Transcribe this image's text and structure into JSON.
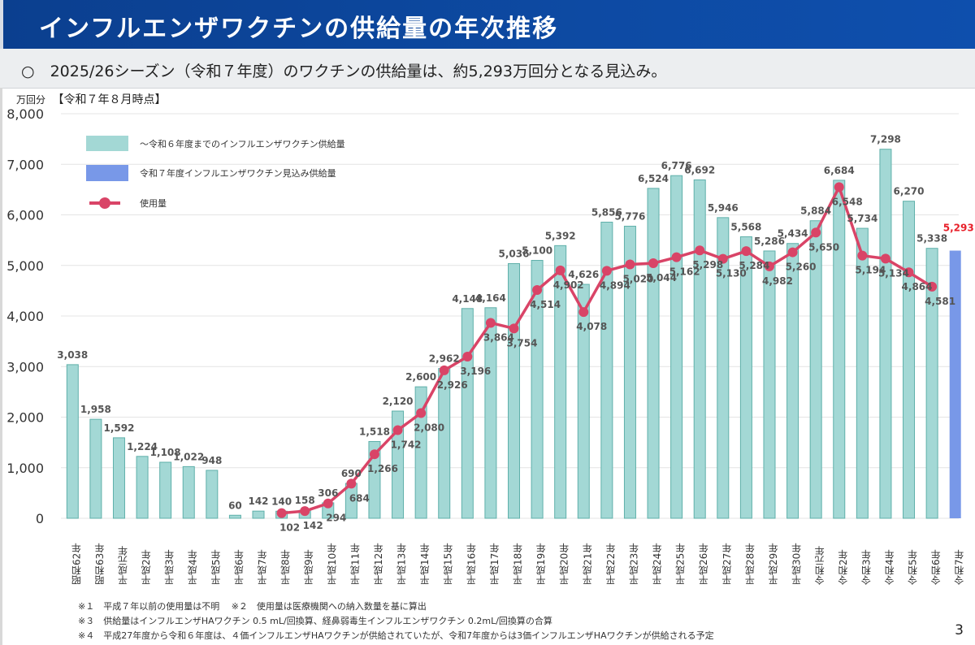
{
  "header": {
    "title": "インフルエンザワクチンの供給量の年次推移",
    "summary": "○　2025/26シーズン（令和７年度）のワクチンの供給量は、約5,293万回分となる見込み。"
  },
  "chart_meta": {
    "unit": "万回分",
    "as_of": "【令和７年８月時点】"
  },
  "chart_data": {
    "type": "bar",
    "title": "インフルエンザワクチンの供給量の年次推移",
    "xlabel": "",
    "ylabel": "万回分",
    "ylim": [
      0,
      8000
    ],
    "yticks": [
      0,
      1000,
      2000,
      3000,
      4000,
      5000,
      6000,
      7000,
      8000
    ],
    "ytick_labels": [
      "0",
      "1,000",
      "2,000",
      "3,000",
      "4,000",
      "5,000",
      "6,000",
      "7,000",
      "8,000"
    ],
    "grid": true,
    "legend_position": "top-left",
    "categories": [
      "昭和62年",
      "昭和63年",
      "平成元年",
      "平成2年",
      "平成3年",
      "平成4年",
      "平成5年",
      "平成6年",
      "平成7年",
      "平成8年",
      "平成9年",
      "平成10年",
      "平成11年",
      "平成12年",
      "平成13年",
      "平成14年",
      "平成15年",
      "平成16年",
      "平成17年",
      "平成18年",
      "平成19年",
      "平成20年",
      "平成21年",
      "平成22年",
      "平成23年",
      "平成24年",
      "平成25年",
      "平成26年",
      "平成27年",
      "平成28年",
      "平成29年",
      "平成30年",
      "令和元年",
      "令和2年",
      "令和3年",
      "令和4年",
      "令和5年",
      "令和6年",
      "令和7年"
    ],
    "series": [
      {
        "name": "～令和６年度までのインフルエンザワクチン供給量",
        "type": "bar",
        "color": "#a3d8d5",
        "values": [
          3038,
          1958,
          1592,
          1224,
          1108,
          1022,
          948,
          60,
          142,
          140,
          158,
          306,
          690,
          1518,
          2120,
          2600,
          2962,
          4148,
          4164,
          5036,
          5100,
          5392,
          4626,
          5856,
          5776,
          6524,
          6776,
          6692,
          5946,
          5568,
          5286,
          5434,
          5884,
          6684,
          5734,
          7298,
          6270,
          5338,
          null
        ],
        "labels": [
          "3,038",
          "1,958",
          "1,592",
          "1,224",
          "1,108",
          "1,022",
          "948",
          "60",
          "142",
          "140",
          "158",
          "306",
          "690",
          "1,518",
          "2,120",
          "2,600",
          "2,962",
          "4,148",
          "4,164",
          "5,036",
          "5,100",
          "5,392",
          "4,626",
          "5,856",
          "5,776",
          "6,524",
          "6,776",
          "6,692",
          "5,946",
          "5,568",
          "5,286",
          "5,434",
          "5,884",
          "6,684",
          "5,734",
          "7,298",
          "6,270",
          "5,338",
          ""
        ]
      },
      {
        "name": "令和７年度インフルエンザワクチン見込み供給量",
        "type": "bar",
        "color": "#7898e8",
        "values": [
          null,
          null,
          null,
          null,
          null,
          null,
          null,
          null,
          null,
          null,
          null,
          null,
          null,
          null,
          null,
          null,
          null,
          null,
          null,
          null,
          null,
          null,
          null,
          null,
          null,
          null,
          null,
          null,
          null,
          null,
          null,
          null,
          null,
          null,
          null,
          null,
          null,
          null,
          5293
        ],
        "labels": [
          "",
          "",
          "",
          "",
          "",
          "",
          "",
          "",
          "",
          "",
          "",
          "",
          "",
          "",
          "",
          "",
          "",
          "",
          "",
          "",
          "",
          "",
          "",
          "",
          "",
          "",
          "",
          "",
          "",
          "",
          "",
          "",
          "",
          "",
          "",
          "",
          "",
          "",
          "5,293"
        ],
        "label_color": "#e8202a"
      },
      {
        "name": "使用量",
        "type": "line",
        "color": "#d94467",
        "values": [
          null,
          null,
          null,
          null,
          null,
          null,
          null,
          null,
          null,
          102,
          142,
          294,
          684,
          1266,
          1742,
          2080,
          2926,
          3196,
          3864,
          3754,
          4514,
          4902,
          4078,
          4894,
          5020,
          5044,
          5162,
          5298,
          5130,
          5284,
          4982,
          5260,
          5650,
          6548,
          5194,
          5134,
          4864,
          4581,
          null
        ],
        "labels": [
          "",
          "",
          "",
          "",
          "",
          "",
          "",
          "",
          "",
          "102",
          "142",
          "294",
          "684",
          "1,266",
          "1,742",
          "2,080",
          "2,926",
          "3,196",
          "3,864",
          "3,754",
          "4,514",
          "4,902",
          "4,078",
          "4,894",
          "5,020",
          "5,044",
          "5,162",
          "5,298",
          "5,130",
          "5,284",
          "4,982",
          "5,260",
          "5,650",
          "6,548",
          "5,194",
          "5,134",
          "4,864",
          "4,581",
          ""
        ]
      }
    ]
  },
  "notes": [
    "※１　平成７年以前の使用量は不明　 ※２　使用量は医療機関への納入数量を基に算出",
    "※３　供給量はインフルエンザHAワクチン 0.5 mL/回換算、経鼻弱毒生インフルエンザワクチン 0.2mL/回換算の合算",
    "※４　平成27年度から令和６年度は、４価インフルエンザHAワクチンが供給されていたが、令和7年度からは3価インフルエンザHAワクチンが供給される予定"
  ],
  "page_number": "3"
}
